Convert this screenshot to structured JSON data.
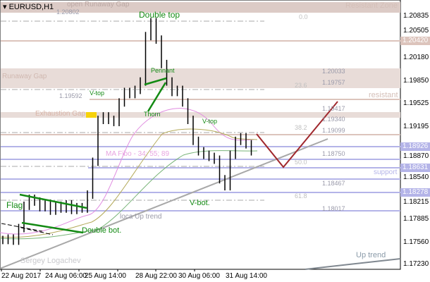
{
  "symbol": "EURUSD,H1",
  "price_axis": {
    "min": 1.1723,
    "max": 1.20835,
    "ticks": [
      "1.20835",
      "1.20505",
      "1.20180",
      "1.19850",
      "1.19525",
      "1.19195",
      "1.18870",
      "1.18540",
      "1.18215",
      "1.17885",
      "1.17560",
      "1.17230"
    ]
  },
  "time_axis": [
    "22 Aug 2017",
    "24 Aug 06:00",
    "25 Aug 14:00",
    "28 Aug 22:00",
    "30 Aug 06:00",
    "31 Aug 14:00"
  ],
  "highlighted_prices": [
    {
      "value": "1.20420",
      "color": "#dcc4bc"
    },
    {
      "value": "1.18926",
      "color": "#b4b4e8"
    },
    {
      "value": "1.18631",
      "color": "#b4b4e8"
    },
    {
      "value": "1.18278",
      "color": "#b4b4e8"
    }
  ],
  "level_labels": [
    "1.20802",
    "1.20033",
    "1.19757",
    "1.19592",
    "1.19417",
    "1.19340",
    "1.19099",
    "1.18750",
    "1.18467",
    "1.18017"
  ],
  "fibo": [
    "0.0",
    "23.6",
    "38.2",
    "50.0",
    "61.8"
  ],
  "annotations": {
    "open_runaway_gap": "open Runaway Gap",
    "resistant_zone": "Resistant Zone",
    "double_top": "Double top",
    "runaway_gap": "Runaway Gap",
    "pennant": "Pennant",
    "v_top_1": "V-top",
    "exhaustion_gap": "Exhaustion  Gap",
    "thorn": "Thorn",
    "v_top_2": "V-top",
    "resistant": "resistant",
    "ma_fibo": "MA Fibo - 34; 55; 89",
    "support": "support",
    "flag": "Flag",
    "v_bot": "V-bot.",
    "loca_up_trend": "loca Up trend",
    "double_bot": "Double bot.",
    "author": "Sergey Logachev",
    "up_trend": "Up trend"
  },
  "colors": {
    "zone": "#e8dcd8",
    "level": "#dcc4bc",
    "support": "#b4b4e8",
    "pattern": "#138a13",
    "forecast": "#a0282d",
    "trend": "#a8a8a8"
  },
  "closes": [
    1.1763,
    1.1765,
    1.1762,
    1.178,
    1.1812,
    1.1822,
    1.1818,
    1.181,
    1.1815,
    1.1805,
    1.1812,
    1.1808,
    1.1814,
    1.1806,
    1.181,
    1.1808,
    1.1828,
    1.1875,
    1.1935,
    1.194,
    1.1935,
    1.1932,
    1.196,
    1.1975,
    1.1972,
    1.1978,
    1.199,
    1.2055,
    1.2075,
    1.205,
    1.2015,
    1.199,
    1.1975,
    1.1978,
    1.196,
    1.1935,
    1.1905,
    1.189,
    1.1885,
    1.1882,
    1.1878,
    1.185,
    1.184,
    1.1885,
    1.1905,
    1.191,
    1.19,
    1.189
  ]
}
